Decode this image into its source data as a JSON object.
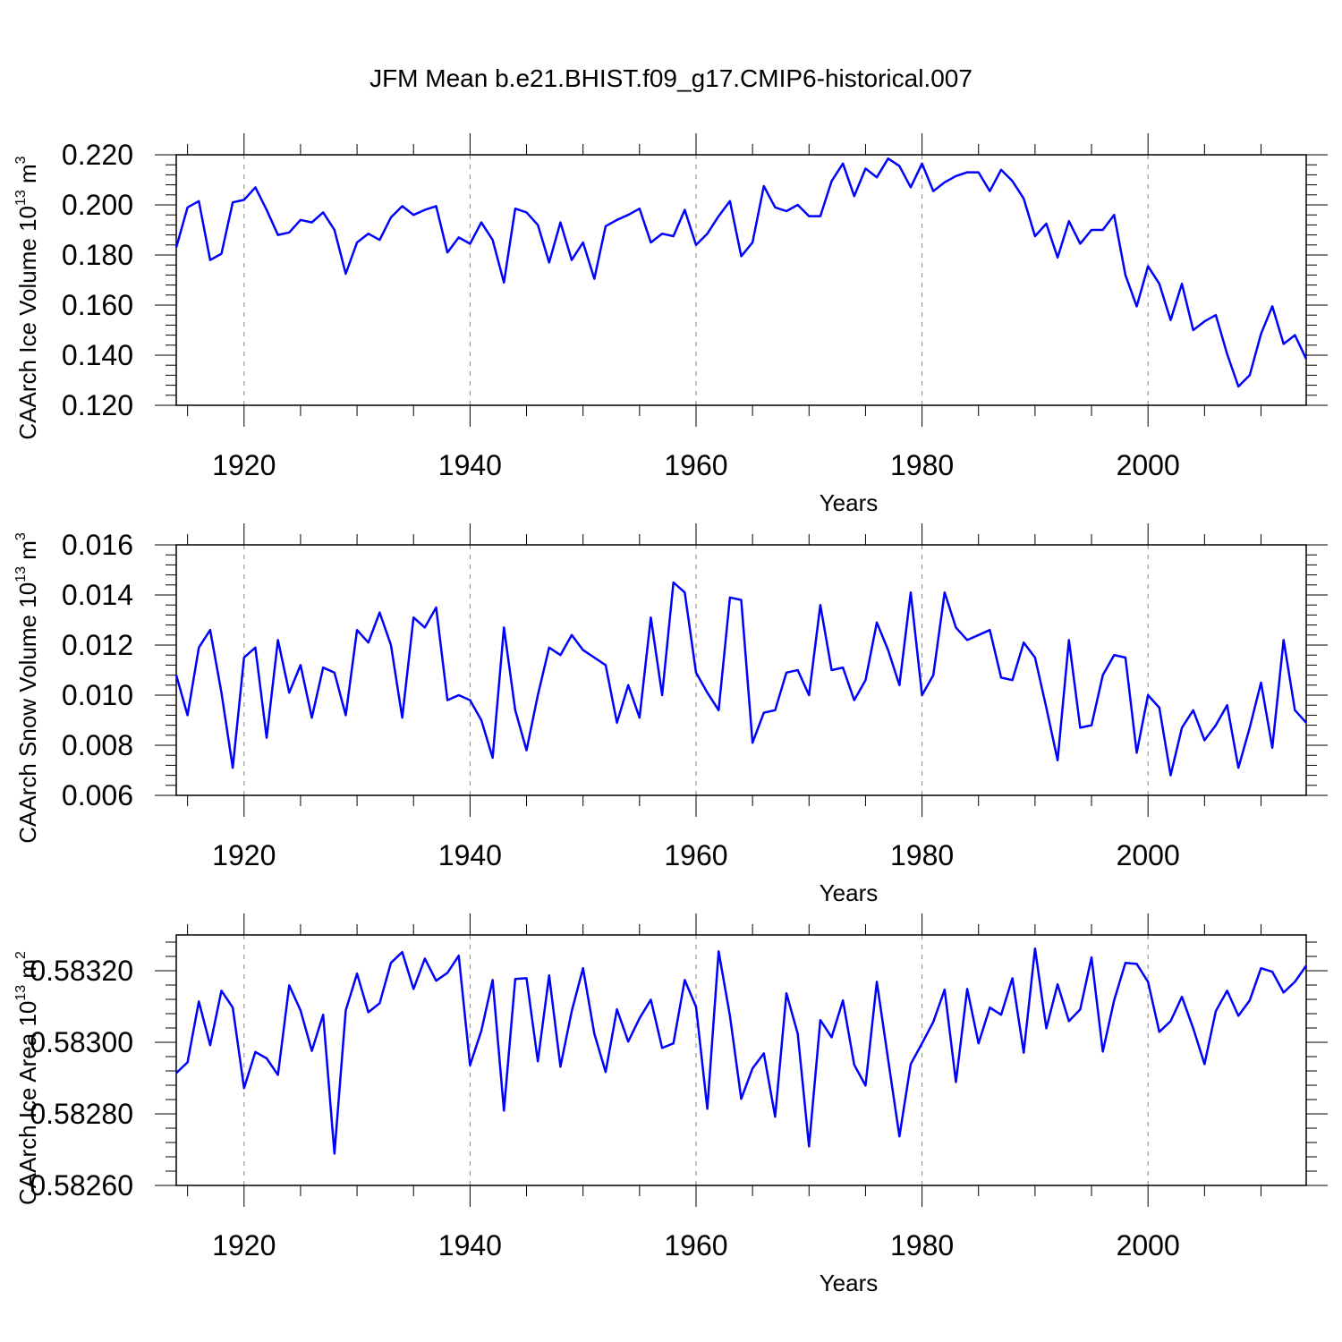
{
  "title": "JFM Mean b.e21.BHIST.f09_g17.CMIP6-historical.007",
  "colors": {
    "line": "#0000ff",
    "axis": "#000000",
    "grid": "#888888"
  },
  "chart_data": [
    {
      "type": "line",
      "title": "JFM Mean b.e21.BHIST.f09_g17.CMIP6-historical.007",
      "xlabel": "Years",
      "ylabel": "CAArch Ice Volume 10",
      "ylabel_exp": "13",
      "ylabel_unit": " m",
      "ylabel_unit_exp": "3",
      "xlim": [
        1914,
        2014
      ],
      "ylim": [
        0.12,
        0.22
      ],
      "xticks": [
        1920,
        1940,
        1960,
        1980,
        2000
      ],
      "xtick_labels": [
        "1920",
        "1940",
        "1960",
        "1980",
        "2000"
      ],
      "yticks": [
        0.12,
        0.14,
        0.16,
        0.18,
        0.2,
        0.22
      ],
      "ytick_labels": [
        "0.120",
        "0.140",
        "0.160",
        "0.180",
        "0.200",
        "0.220"
      ],
      "grid": "vertical dashed at major x ticks",
      "x_start": 1914,
      "series": [
        {
          "name": "CAArch Ice Volume",
          "values": [
            0.183,
            0.199,
            0.2015,
            0.178,
            0.1805,
            0.201,
            0.202,
            0.207,
            0.198,
            0.188,
            0.189,
            0.194,
            0.193,
            0.197,
            0.19,
            0.1725,
            0.185,
            0.1885,
            0.186,
            0.195,
            0.1995,
            0.196,
            0.198,
            0.1995,
            0.181,
            0.187,
            0.1845,
            0.193,
            0.186,
            0.169,
            0.1985,
            0.197,
            0.192,
            0.177,
            0.193,
            0.178,
            0.185,
            0.1705,
            0.1915,
            0.194,
            0.196,
            0.1985,
            0.185,
            0.1885,
            0.1875,
            0.198,
            0.184,
            0.1885,
            0.1955,
            0.2015,
            0.1795,
            0.185,
            0.2075,
            0.199,
            0.1975,
            0.2,
            0.1955,
            0.1955,
            0.2095,
            0.2165,
            0.2035,
            0.2145,
            0.211,
            0.2185,
            0.2155,
            0.207,
            0.2165,
            0.2055,
            0.209,
            0.2115,
            0.213,
            0.213,
            0.2055,
            0.214,
            0.2095,
            0.2025,
            0.1875,
            0.1925,
            0.179,
            0.1935,
            0.1845,
            0.19,
            0.19,
            0.196,
            0.172,
            0.1595,
            0.1755,
            0.1685,
            0.154,
            0.1685,
            0.15,
            0.1535,
            0.156,
            0.1405,
            0.1275,
            0.132,
            0.1485,
            0.1595,
            0.1445,
            0.148,
            0.1385
          ]
        }
      ]
    },
    {
      "type": "line",
      "xlabel": "Years",
      "ylabel": "CAArch Snow Volume 10",
      "ylabel_exp": "13",
      "ylabel_unit": " m",
      "ylabel_unit_exp": "3",
      "xlim": [
        1914,
        2014
      ],
      "ylim": [
        0.006,
        0.016
      ],
      "xticks": [
        1920,
        1940,
        1960,
        1980,
        2000
      ],
      "xtick_labels": [
        "1920",
        "1940",
        "1960",
        "1980",
        "2000"
      ],
      "yticks": [
        0.006,
        0.008,
        0.01,
        0.012,
        0.014,
        0.016
      ],
      "ytick_labels": [
        "0.006",
        "0.008",
        "0.010",
        "0.012",
        "0.014",
        "0.016"
      ],
      "grid": "vertical dashed at major x ticks",
      "x_start": 1914,
      "series": [
        {
          "name": "CAArch Snow Volume",
          "values": [
            0.0108,
            0.0092,
            0.0119,
            0.0126,
            0.0101,
            0.0071,
            0.0115,
            0.0119,
            0.0083,
            0.0122,
            0.0101,
            0.0112,
            0.0091,
            0.0111,
            0.0109,
            0.0092,
            0.0126,
            0.0121,
            0.0133,
            0.012,
            0.0091,
            0.0131,
            0.0127,
            0.0135,
            0.0098,
            0.01,
            0.0098,
            0.009,
            0.0075,
            0.0127,
            0.0094,
            0.0078,
            0.01,
            0.0119,
            0.0116,
            0.0124,
            0.0118,
            0.0115,
            0.0112,
            0.0089,
            0.0104,
            0.0091,
            0.0131,
            0.01,
            0.0145,
            0.0141,
            0.0109,
            0.0101,
            0.0094,
            0.0139,
            0.0138,
            0.0081,
            0.0093,
            0.0094,
            0.0109,
            0.011,
            0.01,
            0.0136,
            0.011,
            0.0111,
            0.0098,
            0.0106,
            0.0129,
            0.0118,
            0.0104,
            0.0141,
            0.01,
            0.0108,
            0.0141,
            0.0127,
            0.0122,
            0.0124,
            0.0126,
            0.0107,
            0.0106,
            0.0121,
            0.0115,
            0.0095,
            0.0074,
            0.0122,
            0.0087,
            0.0088,
            0.0108,
            0.0116,
            0.0115,
            0.0077,
            0.01,
            0.0095,
            0.0068,
            0.0087,
            0.0094,
            0.0082,
            0.0088,
            0.0096,
            0.0071,
            0.0087,
            0.0105,
            0.0079,
            0.0122,
            0.0094,
            0.0089
          ]
        }
      ]
    },
    {
      "type": "line",
      "xlabel": "Years",
      "ylabel": "CAArch Ice Area 10",
      "ylabel_exp": "13",
      "ylabel_unit": " m",
      "ylabel_unit_exp": "2",
      "xlim": [
        1914,
        2014
      ],
      "ylim": [
        0.5826,
        0.5833
      ],
      "xticks": [
        1920,
        1940,
        1960,
        1980,
        2000
      ],
      "xtick_labels": [
        "1920",
        "1940",
        "1960",
        "1980",
        "2000"
      ],
      "yticks": [
        0.5826,
        0.5828,
        0.583,
        0.5832
      ],
      "ytick_labels": [
        "0.58260",
        "0.58280",
        "0.58300",
        "0.58320"
      ],
      "grid": "vertical dashed at major x ticks",
      "x_start": 1914,
      "series": [
        {
          "name": "CAArch Ice Area",
          "values": [
            0.582914,
            0.582944,
            0.583114,
            0.582992,
            0.583144,
            0.583097,
            0.582872,
            0.582973,
            0.582955,
            0.582909,
            0.583159,
            0.583089,
            0.582976,
            0.583077,
            0.582689,
            0.583089,
            0.583192,
            0.583084,
            0.583109,
            0.583222,
            0.583252,
            0.583149,
            0.583234,
            0.583172,
            0.583194,
            0.583242,
            0.582936,
            0.583032,
            0.583174,
            0.582809,
            0.583177,
            0.583179,
            0.582947,
            0.583187,
            0.582932,
            0.583087,
            0.583207,
            0.583024,
            0.582917,
            0.583092,
            0.583002,
            0.583067,
            0.583119,
            0.582984,
            0.582997,
            0.583174,
            0.583099,
            0.582814,
            0.583254,
            0.583074,
            0.582842,
            0.582927,
            0.582969,
            0.582792,
            0.583137,
            0.583024,
            0.582709,
            0.583062,
            0.583014,
            0.583117,
            0.582937,
            0.582879,
            0.583169,
            0.582952,
            0.582737,
            0.582939,
            0.582997,
            0.583057,
            0.583147,
            0.582889,
            0.583149,
            0.582997,
            0.583097,
            0.583077,
            0.583179,
            0.582971,
            0.583262,
            0.583039,
            0.583162,
            0.583059,
            0.583092,
            0.583237,
            0.582974,
            0.583117,
            0.583222,
            0.583219,
            0.583169,
            0.583029,
            0.583059,
            0.583127,
            0.583039,
            0.582939,
            0.583087,
            0.583144,
            0.583074,
            0.583117,
            0.583207,
            0.583197,
            0.583139,
            0.583169,
            0.583214
          ]
        }
      ]
    }
  ]
}
